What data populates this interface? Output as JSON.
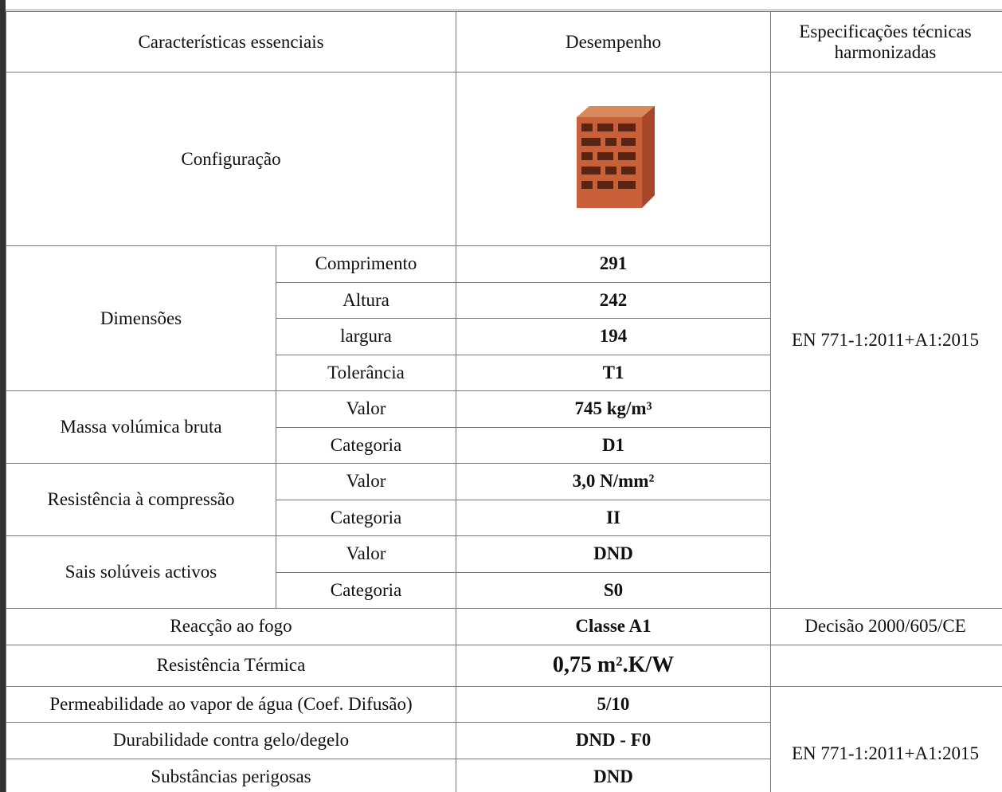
{
  "table": {
    "header": [
      "Características essenciais",
      "Desempenho",
      "Especificações técnicas harmonizadas"
    ],
    "configuration": "Configuração",
    "groups": [
      {
        "label": "Dimensões",
        "rows": [
          [
            "Comprimento",
            "291"
          ],
          [
            "Altura",
            "242"
          ],
          [
            "largura",
            "194"
          ],
          [
            "Tolerância",
            "T1"
          ]
        ]
      },
      {
        "label": "Massa volúmica bruta",
        "rows": [
          [
            "Valor",
            "745 kg/m³"
          ],
          [
            "Categoria",
            "D1"
          ]
        ]
      },
      {
        "label": "Resistência à compressão",
        "rows": [
          [
            "Valor",
            "3,0 N/mm²"
          ],
          [
            "Categoria",
            "II"
          ]
        ]
      },
      {
        "label": "Sais solúveis activos",
        "rows": [
          [
            "Valor",
            "DND"
          ],
          [
            "Categoria",
            "S0"
          ]
        ]
      }
    ],
    "single_rows": [
      [
        "Reacção ao fogo",
        "Classe A1"
      ],
      [
        "Resistência Térmica",
        "0,75 m².K/W"
      ],
      [
        "Permeabilidade ao vapor de água (Coef. Difusão)",
        "5/10"
      ],
      [
        "Durabilidade contra gelo/degelo",
        "DND - F0"
      ],
      [
        "Substâncias perigosas",
        "DND"
      ]
    ],
    "specs": [
      "EN 771-1:2011+A1:2015",
      "Decisão 2000/605/CE",
      "EN 771-1:2011+A1:2015"
    ]
  }
}
